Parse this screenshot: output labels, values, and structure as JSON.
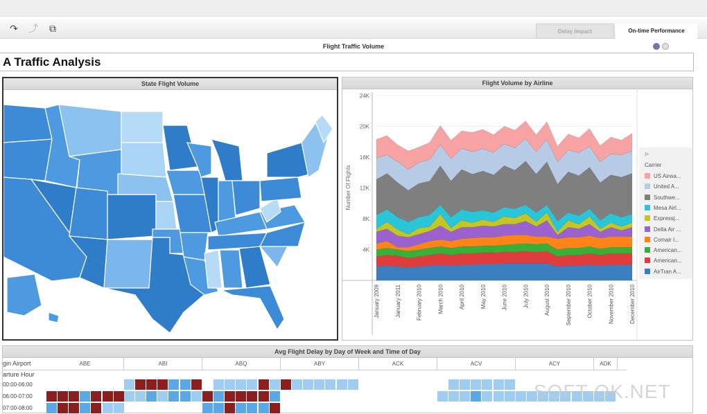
{
  "toolbar": {
    "tabs": [
      {
        "label": "Delay Impact",
        "active": false
      },
      {
        "label": "On-time Performance",
        "active": true
      }
    ]
  },
  "page": {
    "header": "Flight Traffic Volume",
    "title": "A Traffic Analysis"
  },
  "map_panel": {
    "title": "State Flight Volume"
  },
  "chart_panel": {
    "title": "Flight Volume by Airline"
  },
  "chart_data": {
    "type": "area",
    "stacked": true,
    "title": "Flight Volume by Airline",
    "xlabel": "",
    "ylabel": "Number Of Flights",
    "ylim": [
      0,
      24000
    ],
    "yticks": [
      "4K",
      "8K",
      "12K",
      "16K",
      "20K",
      "24K"
    ],
    "ytick_values": [
      4000,
      8000,
      12000,
      16000,
      20000,
      24000
    ],
    "xtick_labels": [
      "January 2009",
      "January 2011",
      "February 2010",
      "March 2010",
      "April 2010",
      "May 2010",
      "June 2010",
      "July 2010",
      "August 2010",
      "September 2010",
      "October 2010",
      "November 2010",
      "December 2010"
    ],
    "points": 25,
    "legend": {
      "title": "Carrier",
      "placement": "right"
    },
    "series": [
      {
        "name": "AirTran A...",
        "color": "#3b7fc0",
        "values": [
          1.8,
          1.9,
          1.8,
          1.7,
          1.8,
          1.9,
          2.0,
          1.9,
          2.0,
          2.0,
          2.1,
          2.1,
          2.2,
          2.2,
          2.2,
          2.2,
          2.2,
          1.8,
          1.9,
          1.9,
          2.0,
          1.9,
          2.0,
          2.0,
          2.0
        ]
      },
      {
        "name": "American...",
        "color": "#e03c3c",
        "values": [
          1.3,
          1.4,
          1.4,
          1.2,
          1.3,
          1.4,
          1.5,
          1.4,
          1.5,
          1.5,
          1.5,
          1.5,
          1.5,
          1.5,
          1.6,
          1.5,
          1.6,
          1.3,
          1.4,
          1.4,
          1.5,
          1.4,
          1.5,
          1.5,
          1.5
        ]
      },
      {
        "name": "American...",
        "color": "#36b036",
        "values": [
          0.9,
          0.9,
          0.8,
          0.9,
          0.9,
          0.9,
          0.9,
          0.9,
          0.9,
          0.9,
          0.9,
          0.9,
          0.9,
          1.0,
          1.0,
          1.0,
          1.0,
          0.9,
          0.9,
          0.9,
          0.9,
          0.8,
          0.8,
          0.8,
          0.8
        ]
      },
      {
        "name": "Comair I...",
        "color": "#ff8418",
        "values": [
          0.8,
          0.9,
          0.3,
          0.5,
          0.7,
          0.9,
          0.9,
          0.9,
          1.0,
          1.1,
          1.1,
          1.1,
          1.2,
          1.2,
          1.1,
          1.0,
          0.9,
          1.4,
          1.4,
          1.4,
          1.4,
          1.4,
          1.4,
          1.4,
          1.4
        ]
      },
      {
        "name": "Delta Air ...",
        "color": "#9b62cf",
        "values": [
          1.5,
          1.6,
          1.5,
          1.3,
          1.3,
          1.3,
          1.8,
          1.2,
          1.5,
          1.4,
          1.5,
          1.4,
          1.5,
          1.4,
          1.8,
          1.3,
          2.1,
          0.5,
          1.3,
          1.1,
          1.5,
          0.8,
          1.2,
          0.8,
          1.2
        ]
      },
      {
        "name": "Expressj...",
        "color": "#c4c623",
        "values": [
          0.4,
          0.9,
          0.8,
          0.4,
          0.8,
          0.6,
          1.5,
          0.5,
          0.9,
          0.6,
          0.8,
          0.6,
          1.0,
          0.8,
          1.0,
          0.6,
          1.0,
          0.4,
          0.9,
          0.6,
          1.0,
          0.4,
          0.6,
          0.5,
          0.6
        ]
      },
      {
        "name": "Mesa Airl...",
        "color": "#28c6d8",
        "values": [
          1.8,
          1.6,
          1.6,
          1.6,
          1.4,
          1.5,
          1.2,
          1.4,
          1.4,
          1.4,
          1.2,
          1.2,
          1.2,
          1.2,
          1.1,
          1.2,
          1.0,
          1.4,
          1.0,
          1.1,
          1.0,
          1.1,
          1.2,
          1.2,
          1.1
        ]
      },
      {
        "name": "Southwe...",
        "color": "#7f7f7f",
        "values": [
          4.6,
          4.7,
          4.5,
          4.1,
          4.4,
          4.4,
          5.1,
          4.7,
          5.2,
          4.9,
          5.1,
          4.9,
          5.4,
          5.0,
          5.7,
          5.0,
          5.6,
          4.8,
          5.3,
          5.2,
          5.4,
          4.9,
          5.0,
          5.2,
          5.3
        ]
      },
      {
        "name": "United A...",
        "color": "#b8cbe6",
        "values": [
          2.8,
          2.4,
          2.7,
          2.7,
          2.7,
          2.8,
          2.7,
          2.9,
          2.7,
          2.9,
          2.9,
          2.9,
          2.8,
          2.9,
          2.9,
          2.9,
          2.9,
          2.9,
          2.8,
          3.0,
          2.7,
          2.7,
          2.7,
          2.9,
          2.9
        ]
      },
      {
        "name": "US Airwa...",
        "color": "#f7a3a3",
        "values": [
          2.4,
          2.5,
          2.2,
          2.4,
          2.0,
          2.2,
          2.5,
          2.4,
          2.3,
          2.5,
          2.5,
          2.3,
          2.3,
          2.3,
          2.3,
          2.2,
          2.3,
          2.0,
          2.1,
          1.9,
          2.3,
          2.1,
          2.2,
          1.9,
          2.3
        ]
      }
    ],
    "value_unit": "thousands"
  },
  "heatmap": {
    "title": "Avg Flight Delay by Day of Week and Time of Day",
    "row_header_1": "gin Airport",
    "row_header_2": "arture Hour",
    "airports": [
      "ABE",
      "ABI",
      "ABQ",
      "ABY",
      "ACK",
      "ACV",
      "ACY",
      "ADK"
    ],
    "rows": [
      {
        "label": "00:00-06:00",
        "cells": [
          [
            0,
            0,
            0,
            0,
            0,
            0,
            0
          ],
          [
            1,
            3,
            3,
            3,
            2,
            2,
            3
          ],
          [
            0,
            1,
            1,
            1,
            1,
            3,
            1
          ],
          [
            3,
            1,
            1,
            1,
            1,
            1,
            1
          ],
          [
            0,
            0,
            0,
            0,
            0,
            0,
            0
          ],
          [
            0,
            1,
            1,
            1,
            1,
            1,
            1
          ],
          [
            0,
            0,
            0,
            0,
            0,
            0,
            0
          ],
          [
            0,
            0
          ]
        ]
      },
      {
        "label": "06:00-07:00",
        "cells": [
          [
            3,
            3,
            3,
            2,
            3,
            3,
            3
          ],
          [
            1,
            1,
            2,
            1,
            2,
            2,
            1
          ],
          [
            3,
            2,
            3,
            3,
            3,
            3,
            2
          ],
          [
            0,
            0,
            0,
            0,
            0,
            0,
            0
          ],
          [
            0,
            0,
            0,
            0,
            0,
            0,
            0
          ],
          [
            1,
            1,
            1,
            2,
            1,
            1,
            1
          ],
          [
            1,
            1,
            1,
            1,
            1,
            1,
            1
          ],
          [
            1,
            1
          ]
        ]
      },
      {
        "label": "07:00-08:00",
        "cells": [
          [
            2,
            3,
            3,
            2,
            3,
            1,
            1
          ],
          [
            0,
            0,
            0,
            0,
            0,
            0,
            0
          ],
          [
            2,
            2,
            3,
            2,
            2,
            2,
            3
          ],
          [
            0,
            0,
            0,
            0,
            0,
            0,
            0
          ],
          [
            0,
            0,
            0,
            0,
            0,
            0,
            0
          ],
          [
            0,
            0,
            0,
            0,
            0,
            0,
            0
          ],
          [
            0,
            0,
            0,
            0,
            0,
            0,
            0
          ],
          [
            0,
            0
          ]
        ]
      }
    ],
    "colors": {
      "0": "#ffffff",
      "1": "#9fcdf2",
      "2": "#5aa9e6",
      "3": "#8b1f1f"
    }
  },
  "watermark": "SOFT-OK.NET"
}
